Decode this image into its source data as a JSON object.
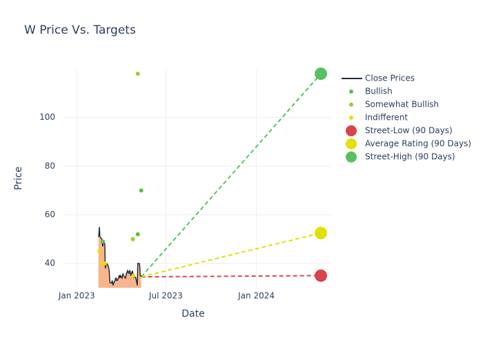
{
  "chart_data": {
    "type": "line",
    "title": "W Price Vs. Targets",
    "x_label": "Date",
    "y_label": "Price",
    "xlim": [
      "2022-12-05",
      "2024-06-01"
    ],
    "xticks": [
      {
        "value": "2023-01-01",
        "label": "Jan 2023"
      },
      {
        "value": "2023-07-01",
        "label": "Jul 2023"
      },
      {
        "value": "2024-01-01",
        "label": "Jan 2024"
      }
    ],
    "ylim": [
      30,
      120
    ],
    "yticks": [
      40,
      60,
      80,
      100
    ],
    "grid": true,
    "legend": "right",
    "series": [
      {
        "name": "Close Prices",
        "color": "#1f2a3a",
        "fill": "#f9b48c",
        "x": [
          "2023-02-14",
          "2023-02-15",
          "2023-02-16",
          "2023-02-17",
          "2023-02-21",
          "2023-02-22",
          "2023-02-23",
          "2023-02-24",
          "2023-02-27",
          "2023-02-28",
          "2023-03-01",
          "2023-03-02",
          "2023-03-03",
          "2023-03-06",
          "2023-03-07",
          "2023-03-08",
          "2023-03-09",
          "2023-03-10",
          "2023-03-13",
          "2023-03-14",
          "2023-03-15",
          "2023-03-16",
          "2023-03-17",
          "2023-03-20",
          "2023-03-21",
          "2023-03-22",
          "2023-03-23",
          "2023-03-24",
          "2023-03-27",
          "2023-03-28",
          "2023-03-29",
          "2023-03-30",
          "2023-03-31",
          "2023-04-03",
          "2023-04-04",
          "2023-04-05",
          "2023-04-06",
          "2023-04-10",
          "2023-04-11",
          "2023-04-12",
          "2023-04-13",
          "2023-04-14",
          "2023-04-17",
          "2023-04-18",
          "2023-04-19",
          "2023-04-20",
          "2023-04-21",
          "2023-04-24",
          "2023-04-25",
          "2023-04-26",
          "2023-04-27",
          "2023-04-28",
          "2023-05-01",
          "2023-05-02",
          "2023-05-03",
          "2023-05-04",
          "2023-05-05",
          "2023-05-08",
          "2023-05-09",
          "2023-05-10",
          "2023-05-11",
          "2023-05-12"
        ],
        "values": [
          51,
          52,
          55,
          51,
          50,
          48,
          47,
          49,
          48,
          38,
          39,
          40,
          40,
          39,
          38,
          37,
          33,
          32,
          32,
          33,
          32,
          31,
          32,
          33,
          34,
          34,
          33,
          33,
          34,
          35,
          35,
          34,
          35,
          34,
          35,
          36,
          35,
          34,
          35,
          36,
          36,
          37,
          36,
          37,
          37,
          36,
          35,
          37,
          36,
          35,
          34,
          35,
          34,
          33,
          32,
          31,
          40,
          40,
          39,
          35,
          35,
          34.5
        ]
      },
      {
        "name": "Bullish",
        "color": "#5cbf4a",
        "x": [
          "2023-02-23",
          "2023-05-05",
          "2023-05-12"
        ],
        "values": [
          49,
          52,
          70
        ]
      },
      {
        "name": "Somewhat Bullish",
        "color": "#9acd32",
        "x": [
          "2023-05-05",
          "2023-04-25"
        ],
        "values": [
          118,
          50
        ]
      },
      {
        "name": "Indifferent",
        "color": "#e2e000",
        "x": [
          "2023-02-16",
          "2023-02-21",
          "2023-02-27",
          "2023-04-26"
        ],
        "values": [
          45,
          40,
          40,
          35
        ]
      },
      {
        "name": "Street-Low (90 Days)",
        "color": "#d9434b",
        "x": [
          "2024-05-11"
        ],
        "values": [
          35
        ]
      },
      {
        "name": "Average Rating (90 Days)",
        "color": "#e2e000",
        "x": [
          "2024-05-11"
        ],
        "values": [
          52.5
        ]
      },
      {
        "name": "Street-High (90 Days)",
        "color": "#55c160",
        "x": [
          "2024-05-11"
        ],
        "values": [
          118
        ]
      }
    ]
  }
}
